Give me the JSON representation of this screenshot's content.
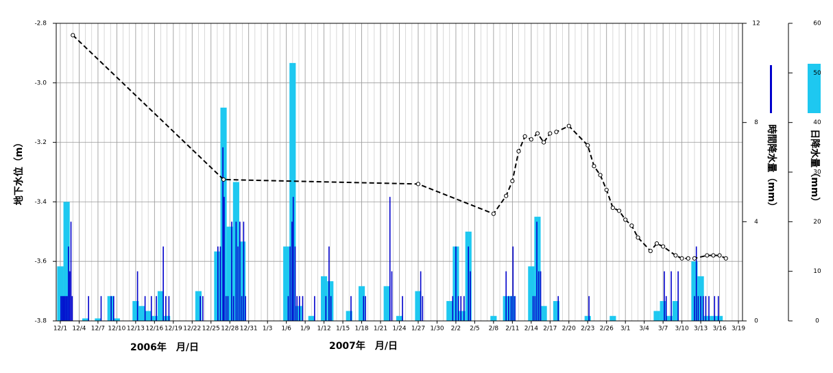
{
  "chart_data": {
    "type": "combo",
    "xlim": [
      -0.65,
      108.65
    ],
    "xticks": [
      {
        "value": 0,
        "label": "12/1"
      },
      {
        "value": 3,
        "label": "12/4"
      },
      {
        "value": 6,
        "label": "12/7"
      },
      {
        "value": 9,
        "label": "12/10"
      },
      {
        "value": 12,
        "label": "12/13"
      },
      {
        "value": 15,
        "label": "12/16"
      },
      {
        "value": 18,
        "label": "12/19"
      },
      {
        "value": 21,
        "label": "12/22"
      },
      {
        "value": 24,
        "label": "12/25"
      },
      {
        "value": 27,
        "label": "12/28"
      },
      {
        "value": 30,
        "label": "12/31"
      },
      {
        "value": 33,
        "label": "1/3"
      },
      {
        "value": 36,
        "label": "1/6"
      },
      {
        "value": 39,
        "label": "1/9"
      },
      {
        "value": 42,
        "label": "1/12"
      },
      {
        "value": 45,
        "label": "1/15"
      },
      {
        "value": 48,
        "label": "1/18"
      },
      {
        "value": 51,
        "label": "1/21"
      },
      {
        "value": 54,
        "label": "1/24"
      },
      {
        "value": 57,
        "label": "1/27"
      },
      {
        "value": 60,
        "label": "1/30"
      },
      {
        "value": 63,
        "label": "2/2"
      },
      {
        "value": 66,
        "label": "2/5"
      },
      {
        "value": 69,
        "label": "2/8"
      },
      {
        "value": 72,
        "label": "2/11"
      },
      {
        "value": 75,
        "label": "2/14"
      },
      {
        "value": 78,
        "label": "2/17"
      },
      {
        "value": 81,
        "label": "2/20"
      },
      {
        "value": 84,
        "label": "2/23"
      },
      {
        "value": 87,
        "label": "2/26"
      },
      {
        "value": 90,
        "label": "3/1"
      },
      {
        "value": 93,
        "label": "3/4"
      },
      {
        "value": 96,
        "label": "3/7"
      },
      {
        "value": 99,
        "label": "3/10"
      },
      {
        "value": 102,
        "label": "3/13"
      },
      {
        "value": 105,
        "label": "3/16"
      },
      {
        "value": 108,
        "label": "3/19"
      }
    ],
    "x_labels": [
      "2006年　月/日",
      "2007年　月/日"
    ],
    "ylim": [
      -3.8,
      -2.8
    ],
    "yticks": [
      -3.8,
      -3.6,
      -3.4,
      -3.2,
      {
        "value": -3.0,
        "label": "-3.0"
      },
      -2.8
    ],
    "y2lim": [
      0,
      12
    ],
    "y2ticks": [
      0,
      4,
      8,
      12
    ],
    "y3lim": [
      0,
      60
    ],
    "y3ticks": [
      0,
      10,
      20,
      30,
      40,
      50,
      60
    ],
    "grid": true,
    "series": [
      {
        "name": "地下水位（m）",
        "type": "line",
        "color": "#000000",
        "axis": "y",
        "x": [
          2,
          26,
          57,
          69,
          71,
          72,
          73,
          74,
          75,
          76,
          77,
          78,
          79,
          81,
          84,
          85,
          86,
          87,
          88,
          89,
          90,
          91,
          92,
          94,
          95,
          96,
          98,
          99,
          100,
          101,
          103,
          104,
          105,
          106
        ],
        "values": [
          -2.84,
          -3.325,
          -3.34,
          -3.44,
          -3.38,
          -3.33,
          -3.23,
          -3.18,
          -3.19,
          -3.17,
          -3.2,
          -3.17,
          -3.165,
          -3.145,
          -3.21,
          -3.28,
          -3.31,
          -3.36,
          -3.42,
          -3.43,
          -3.46,
          -3.48,
          -3.52,
          -3.565,
          -3.54,
          -3.55,
          -3.58,
          -3.59,
          -3.59,
          -3.59,
          -3.58,
          -3.58,
          -3.58,
          -3.59
        ]
      },
      {
        "name": "日降水量（mm）",
        "type": "bar",
        "color": "#1ec8f0",
        "axis": "y3",
        "x": [
          0,
          1,
          4,
          6,
          8,
          9,
          12,
          13,
          14,
          15,
          16,
          17,
          22,
          25,
          26,
          27,
          28,
          29,
          36,
          37,
          38,
          40,
          42,
          43,
          46,
          48,
          52,
          54,
          57,
          62,
          63,
          64,
          65,
          69,
          71,
          72,
          75,
          76,
          77,
          79,
          84,
          88,
          95,
          96,
          97,
          98,
          101,
          102,
          103,
          104,
          105
        ],
        "values": [
          11,
          24,
          0.5,
          0.5,
          5,
          0.5,
          4,
          3,
          2,
          1,
          6,
          1,
          6,
          14,
          43,
          19,
          28,
          16,
          15,
          52,
          3,
          1,
          9,
          8,
          2,
          7,
          7,
          1,
          6,
          4,
          15,
          2,
          18,
          1,
          5,
          5,
          11,
          21,
          3,
          4,
          1,
          1,
          2,
          4,
          1,
          4,
          12,
          9,
          1,
          1,
          1
        ]
      },
      {
        "name": "時間降水量（mm）",
        "type": "bar",
        "color": "#0000cc",
        "axis": "y2",
        "x": [
          0.1,
          0.3,
          0.5,
          0.7,
          0.9,
          1.1,
          1.3,
          1.5,
          1.7,
          1.9,
          4.5,
          6.5,
          8.1,
          8.5,
          12.3,
          13.5,
          14.5,
          15.3,
          16.4,
          16.8,
          17.3,
          22.3,
          22.7,
          25.1,
          25.5,
          25.9,
          26.1,
          26.4,
          26.7,
          27.3,
          27.6,
          28.0,
          28.3,
          28.6,
          28.9,
          29.2,
          29.5,
          36.3,
          36.6,
          36.9,
          37.1,
          37.4,
          37.7,
          38.1,
          38.6,
          40.5,
          42.3,
          42.8,
          43.1,
          46.3,
          48.3,
          48.6,
          52.5,
          52.8,
          54.5,
          57.4,
          57.7,
          62.5,
          63.0,
          63.4,
          63.8,
          64.3,
          65.0,
          65.3,
          71.0,
          71.4,
          71.8,
          72.1,
          72.4,
          75.3,
          75.6,
          75.9,
          76.2,
          76.5,
          79.3,
          84.2,
          96.2,
          96.5,
          97.3,
          98.4,
          101.0,
          101.3,
          101.6,
          102.0,
          102.4,
          102.8,
          103.3,
          104.2,
          104.8
        ],
        "values": [
          1,
          1,
          1,
          1,
          1,
          1,
          3,
          2,
          4,
          1,
          1,
          1,
          1,
          1,
          2,
          1,
          1,
          1,
          3,
          1,
          1,
          1,
          1,
          3,
          3,
          7,
          5,
          1,
          1,
          4,
          1,
          4,
          3,
          4,
          1,
          4,
          1,
          1,
          3,
          4,
          5,
          3,
          1,
          1,
          1,
          1,
          1,
          3,
          1,
          1,
          1,
          1,
          5,
          2,
          1,
          2,
          1,
          1,
          3,
          1,
          1,
          1,
          3,
          2,
          2,
          1,
          1,
          3,
          1,
          1,
          1,
          4,
          2,
          2,
          1,
          1,
          2,
          1,
          2,
          2,
          1,
          3,
          1,
          1,
          1,
          1,
          1,
          1,
          1
        ]
      }
    ]
  }
}
